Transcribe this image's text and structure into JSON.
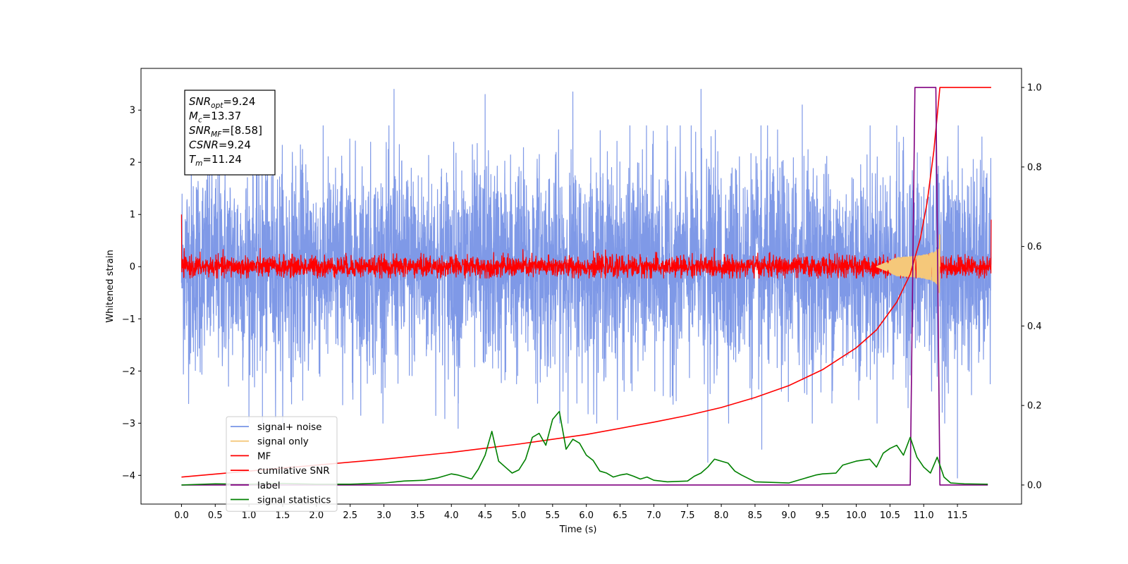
{
  "chart_data": {
    "type": "line",
    "title": "",
    "xlabel": "Time (s)",
    "ylabel": "Whitened strain",
    "y2label": "",
    "xlim": [
      -0.6,
      12.45
    ],
    "ylim": [
      -4.55,
      3.8
    ],
    "y2lim": [
      -0.048,
      1.048
    ],
    "grid": false,
    "legend_position": "lower-left",
    "x_ticks": [
      0.0,
      0.5,
      1.0,
      1.5,
      2.0,
      2.5,
      3.0,
      3.5,
      4.0,
      4.5,
      5.0,
      5.5,
      6.0,
      6.5,
      7.0,
      7.5,
      8.0,
      8.5,
      9.0,
      9.5,
      10.0,
      10.5,
      11.0,
      11.5
    ],
    "x_tick_labels": [
      "0.0",
      "0.5",
      "1.0",
      "1.5",
      "2.0",
      "2.5",
      "3.0",
      "3.5",
      "4.0",
      "4.5",
      "5.0",
      "5.5",
      "6.0",
      "6.5",
      "7.0",
      "7.5",
      "8.0",
      "8.5",
      "9.0",
      "9.5",
      "10.0",
      "10.5",
      "11.0",
      "11.5"
    ],
    "y_ticks": [
      3,
      2,
      1,
      0,
      -1,
      -2,
      -3,
      -4
    ],
    "y_tick_labels": [
      "3",
      "2",
      "1",
      "0",
      "−1",
      "−2",
      "−3",
      "−4"
    ],
    "y2_ticks": [
      1.0,
      0.8,
      0.6,
      0.4,
      0.2,
      0.0
    ],
    "y2_tick_labels": [
      "1.0",
      "0.8",
      "0.6",
      "0.4",
      "0.2",
      "0.0"
    ],
    "annotation": [
      {
        "base": "SNR",
        "sub": "opt",
        "value": "=9.24"
      },
      {
        "base": "M",
        "sub": "c",
        "value": "=13.37"
      },
      {
        "base": "SNR",
        "sub": "MF",
        "value": "=[8.58]"
      },
      {
        "base": "CSNR",
        "sub": "",
        "value": "=9.24"
      },
      {
        "base": "T",
        "sub": "m",
        "value": "=11.24"
      }
    ],
    "series": [
      {
        "name": "signal+ noise",
        "axis": "left",
        "color": "#7894e6",
        "style": "noise",
        "duration": 12.0,
        "sigma": 1.0,
        "x_range": [
          0.0,
          12.0
        ]
      },
      {
        "name": "signal only",
        "axis": "left",
        "color": "#f5c87a",
        "style": "chirp",
        "merger_time": 11.24,
        "peak_amplitude": 0.62,
        "x_range": [
          10.3,
          11.24
        ]
      },
      {
        "name": "MF",
        "axis": "left",
        "color": "#ff0000",
        "style": "noise",
        "sigma": 0.1,
        "x_range": [
          0.0,
          12.0
        ]
      },
      {
        "name": "cumilative SNR",
        "axis": "right",
        "color": "#ff0000",
        "x": [
          0.0,
          1.0,
          2.0,
          3.0,
          4.0,
          5.0,
          6.0,
          7.0,
          7.5,
          8.0,
          8.5,
          9.0,
          9.5,
          10.0,
          10.3,
          10.6,
          10.8,
          10.95,
          11.05,
          11.15,
          11.24,
          12.0
        ],
        "values": [
          0.02,
          0.035,
          0.05,
          0.065,
          0.082,
          0.103,
          0.127,
          0.158,
          0.175,
          0.195,
          0.22,
          0.25,
          0.29,
          0.345,
          0.39,
          0.46,
          0.53,
          0.62,
          0.71,
          0.84,
          1.0,
          1.0
        ]
      },
      {
        "name": "label",
        "axis": "right",
        "color": "#800080",
        "x": [
          0.0,
          10.8,
          10.87,
          11.18,
          11.24,
          11.95
        ],
        "values": [
          0.0,
          0.0,
          1.0,
          1.0,
          0.0,
          0.0
        ]
      },
      {
        "name": "signal statistics",
        "axis": "right",
        "color": "#008000",
        "x": [
          0.0,
          0.5,
          1.0,
          1.5,
          2.0,
          2.5,
          3.0,
          3.3,
          3.6,
          3.8,
          4.0,
          4.1,
          4.2,
          4.3,
          4.4,
          4.5,
          4.6,
          4.7,
          4.8,
          4.9,
          5.0,
          5.1,
          5.2,
          5.3,
          5.4,
          5.5,
          5.6,
          5.7,
          5.8,
          5.9,
          6.0,
          6.1,
          6.2,
          6.3,
          6.4,
          6.5,
          6.6,
          6.7,
          6.8,
          6.9,
          7.0,
          7.2,
          7.5,
          7.6,
          7.7,
          7.8,
          7.9,
          8.0,
          8.1,
          8.2,
          8.3,
          8.5,
          9.0,
          9.2,
          9.4,
          9.5,
          9.7,
          9.8,
          10.0,
          10.2,
          10.3,
          10.4,
          10.5,
          10.6,
          10.7,
          10.8,
          10.9,
          11.0,
          11.1,
          11.2,
          11.3,
          11.4,
          11.6,
          11.95
        ],
        "values": [
          0.0,
          0.003,
          0.002,
          0.004,
          0.002,
          0.002,
          0.005,
          0.01,
          0.012,
          0.018,
          0.028,
          0.025,
          0.02,
          0.015,
          0.04,
          0.075,
          0.135,
          0.06,
          0.045,
          0.03,
          0.038,
          0.065,
          0.12,
          0.13,
          0.1,
          0.165,
          0.185,
          0.09,
          0.115,
          0.105,
          0.075,
          0.062,
          0.035,
          0.03,
          0.02,
          0.025,
          0.028,
          0.022,
          0.015,
          0.02,
          0.012,
          0.008,
          0.01,
          0.022,
          0.03,
          0.045,
          0.065,
          0.06,
          0.055,
          0.035,
          0.025,
          0.008,
          0.005,
          0.015,
          0.025,
          0.028,
          0.03,
          0.05,
          0.06,
          0.065,
          0.045,
          0.08,
          0.092,
          0.1,
          0.075,
          0.12,
          0.07,
          0.045,
          0.03,
          0.07,
          0.02,
          0.005,
          0.003,
          0.002
        ]
      }
    ],
    "noise_spikes": [
      {
        "x": 3.15,
        "y": 3.4
      },
      {
        "x": 4.5,
        "y": 3.3
      },
      {
        "x": 5.8,
        "y": 3.35
      },
      {
        "x": 7.7,
        "y": 3.4
      },
      {
        "x": 9.2,
        "y": 3.1
      },
      {
        "x": 11.5,
        "y": -4.05
      },
      {
        "x": 7.8,
        "y": -3.75
      },
      {
        "x": 8.6,
        "y": -3.5
      },
      {
        "x": 4.1,
        "y": -3.1
      },
      {
        "x": 1.2,
        "y": -3.0
      }
    ]
  }
}
